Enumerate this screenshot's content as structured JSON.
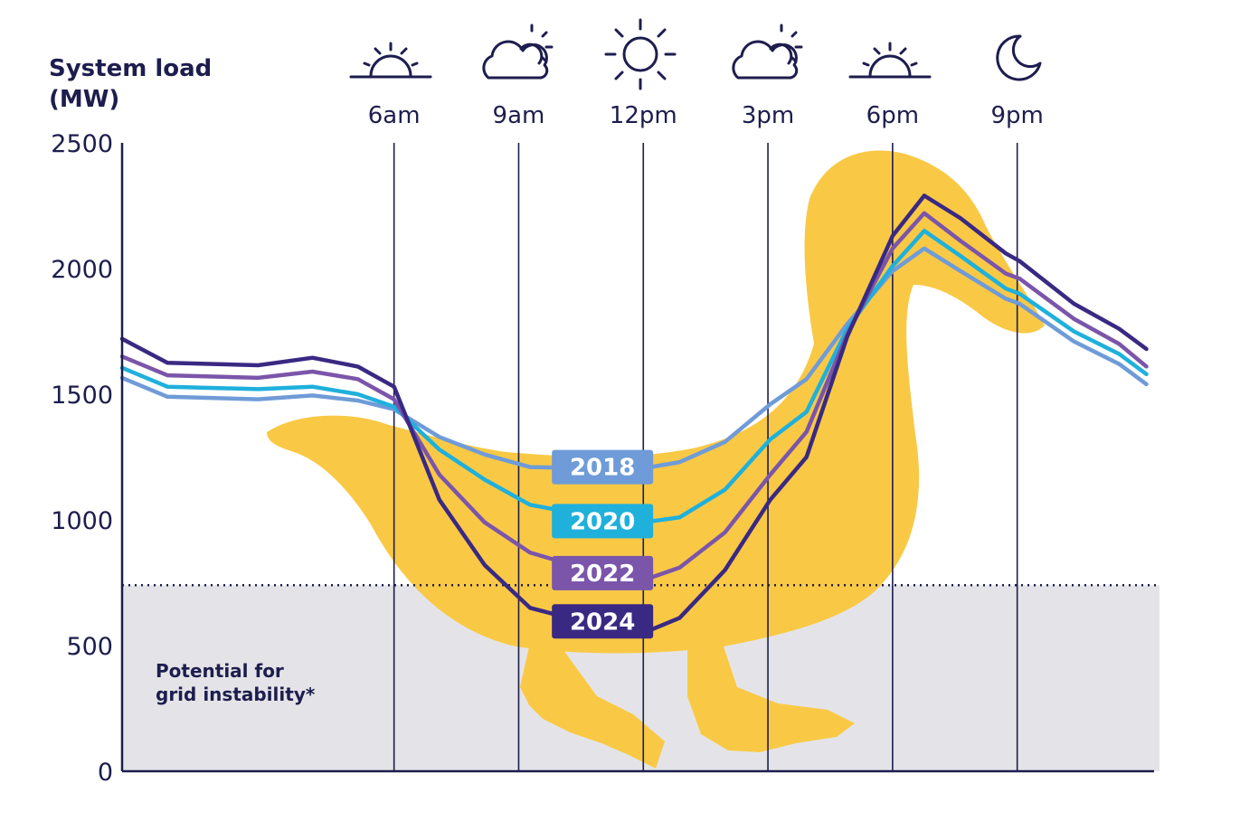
{
  "chart_data": {
    "type": "line",
    "ylabel_line1": "System load",
    "ylabel_line2": "(MW)",
    "ylim": [
      0,
      2500
    ],
    "yticks": [
      "0",
      "500",
      "1000",
      "1500",
      "2000",
      "2500"
    ],
    "ytick_values": [
      0,
      500,
      1000,
      1500,
      2000,
      2500
    ],
    "xlim": [
      1.5,
      24.25
    ],
    "time_markers": [
      {
        "label": "6am",
        "hour": 7.5,
        "icon": "sunrise-icon"
      },
      {
        "label": "9am",
        "hour": 10.25,
        "icon": "cloudy-sun-icon"
      },
      {
        "label": "12pm",
        "hour": 13,
        "icon": "sun-icon"
      },
      {
        "label": "3pm",
        "hour": 15.75,
        "icon": "cloudy-sun-icon"
      },
      {
        "label": "6pm",
        "hour": 18.5,
        "icon": "sunset-icon"
      },
      {
        "label": "9pm",
        "hour": 21.25,
        "icon": "moon-icon"
      }
    ],
    "instability_threshold": 740,
    "instability_label_line1": "Potential for",
    "instability_label_line2": "grid instability*",
    "series": [
      {
        "name": "2018",
        "color": "#6f9bd8",
        "points": [
          [
            1.5,
            1565
          ],
          [
            2.5,
            1490
          ],
          [
            4.5,
            1480
          ],
          [
            5.7,
            1495
          ],
          [
            6.7,
            1475
          ],
          [
            7.5,
            1440
          ],
          [
            8.5,
            1330
          ],
          [
            9.5,
            1260
          ],
          [
            10.5,
            1210
          ],
          [
            12,
            1205
          ],
          [
            13,
            1205
          ],
          [
            13.8,
            1230
          ],
          [
            14.8,
            1310
          ],
          [
            15.8,
            1460
          ],
          [
            16.6,
            1560
          ],
          [
            17.5,
            1780
          ],
          [
            18.5,
            1990
          ],
          [
            19.2,
            2080
          ],
          [
            20,
            1990
          ],
          [
            21,
            1880
          ],
          [
            21.3,
            1860
          ],
          [
            22.5,
            1710
          ],
          [
            23.5,
            1620
          ],
          [
            24.1,
            1540
          ]
        ]
      },
      {
        "name": "2020",
        "color": "#1fb0dc",
        "points": [
          [
            1.5,
            1605
          ],
          [
            2.5,
            1530
          ],
          [
            4.5,
            1520
          ],
          [
            5.7,
            1530
          ],
          [
            6.7,
            1500
          ],
          [
            7.5,
            1450
          ],
          [
            8.5,
            1280
          ],
          [
            9.5,
            1160
          ],
          [
            10.5,
            1060
          ],
          [
            12,
            1010
          ],
          [
            13,
            990
          ],
          [
            13.8,
            1010
          ],
          [
            14.8,
            1120
          ],
          [
            15.8,
            1320
          ],
          [
            16.6,
            1430
          ],
          [
            17.5,
            1760
          ],
          [
            18.5,
            2010
          ],
          [
            19.2,
            2150
          ],
          [
            20,
            2050
          ],
          [
            21,
            1920
          ],
          [
            21.3,
            1900
          ],
          [
            22.5,
            1750
          ],
          [
            23.5,
            1660
          ],
          [
            24.1,
            1580
          ]
        ]
      },
      {
        "name": "2022",
        "color": "#7b55aa",
        "points": [
          [
            1.5,
            1650
          ],
          [
            2.5,
            1575
          ],
          [
            4.5,
            1565
          ],
          [
            5.7,
            1590
          ],
          [
            6.7,
            1560
          ],
          [
            7.5,
            1480
          ],
          [
            8.5,
            1180
          ],
          [
            9.5,
            990
          ],
          [
            10.5,
            870
          ],
          [
            12,
            790
          ],
          [
            13,
            760
          ],
          [
            13.8,
            810
          ],
          [
            14.8,
            950
          ],
          [
            15.8,
            1180
          ],
          [
            16.6,
            1350
          ],
          [
            17.5,
            1740
          ],
          [
            18.5,
            2080
          ],
          [
            19.2,
            2220
          ],
          [
            20,
            2110
          ],
          [
            21,
            1980
          ],
          [
            21.3,
            1960
          ],
          [
            22.5,
            1800
          ],
          [
            23.5,
            1700
          ],
          [
            24.1,
            1610
          ]
        ]
      },
      {
        "name": "2024",
        "color": "#3a2983",
        "points": [
          [
            1.5,
            1720
          ],
          [
            2.5,
            1625
          ],
          [
            4.5,
            1615
          ],
          [
            5.7,
            1645
          ],
          [
            6.7,
            1610
          ],
          [
            7.5,
            1530
          ],
          [
            8.5,
            1080
          ],
          [
            9.5,
            820
          ],
          [
            10.5,
            650
          ],
          [
            12,
            580
          ],
          [
            13,
            550
          ],
          [
            13.8,
            610
          ],
          [
            14.8,
            800
          ],
          [
            15.8,
            1080
          ],
          [
            16.6,
            1250
          ],
          [
            17.5,
            1730
          ],
          [
            18.5,
            2130
          ],
          [
            19.2,
            2290
          ],
          [
            20,
            2200
          ],
          [
            21,
            2060
          ],
          [
            21.3,
            2030
          ],
          [
            22.5,
            1860
          ],
          [
            23.5,
            1760
          ],
          [
            24.1,
            1680
          ]
        ]
      }
    ],
    "series_label_positions": [
      {
        "name": "2018",
        "hour": 12.1,
        "value": 1210
      },
      {
        "name": "2020",
        "hour": 12.1,
        "value": 995
      },
      {
        "name": "2022",
        "hour": 12.1,
        "value": 788
      },
      {
        "name": "2024",
        "hour": 12.1,
        "value": 596
      }
    ],
    "grid": "vertical lines at time markers",
    "colors": {
      "duck": "#f9c945",
      "axis": "#1d1d4e",
      "zone": "#e4e4e8"
    }
  }
}
